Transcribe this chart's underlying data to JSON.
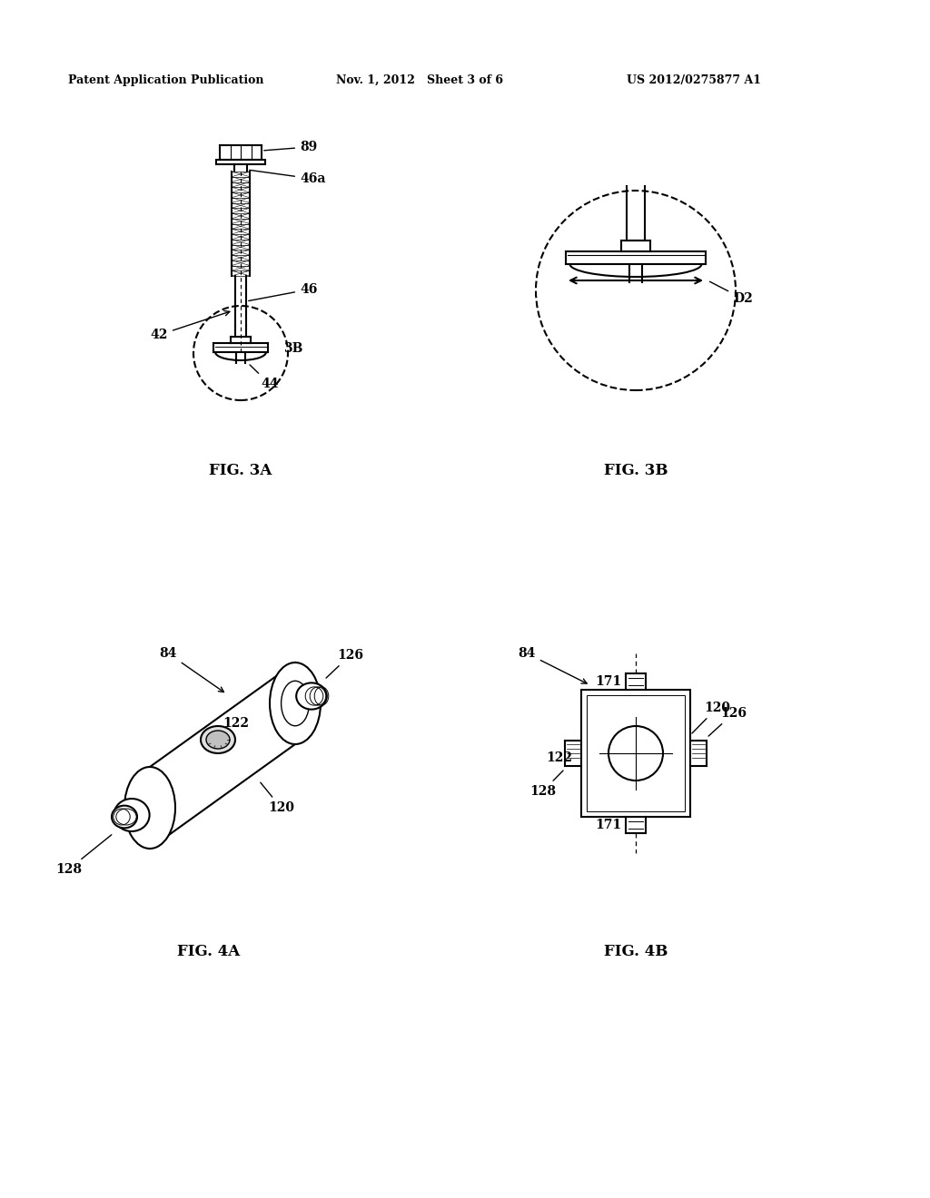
{
  "bg_color": "#ffffff",
  "header_left": "Patent Application Publication",
  "header_mid": "Nov. 1, 2012   Sheet 3 of 6",
  "header_right": "US 2012/0275877 A1",
  "fig3a_label": "FIG. 3A",
  "fig3b_label": "FIG. 3B",
  "fig4a_label": "FIG. 4A",
  "fig4b_label": "FIG. 4B"
}
